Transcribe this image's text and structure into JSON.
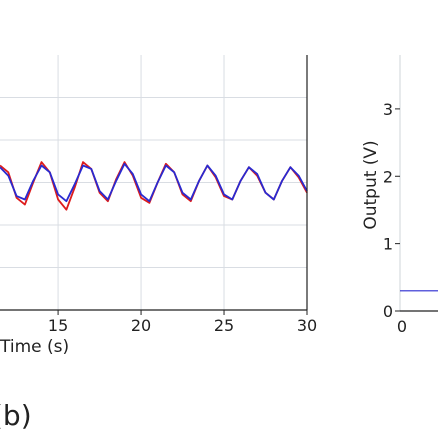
{
  "chart_data": [
    {
      "type": "line",
      "xlabel": "Time (s)",
      "ylabel": "",
      "xlim": [
        11.5,
        30
      ],
      "ylim": [
        -1.5,
        1.5
      ],
      "x_ticks": [
        15,
        20,
        25,
        30
      ],
      "x_tick_labels": [
        "15",
        "20",
        "25",
        "30"
      ],
      "grid": true,
      "panel_label": "(b)",
      "series": [
        {
          "color": "#dd1c1c",
          "x": [
            11.5,
            12.0,
            12.5,
            13.0,
            13.5,
            14.0,
            14.5,
            15.0,
            15.5,
            16.0,
            16.5,
            17.0,
            17.5,
            18.0,
            18.5,
            19.0,
            19.5,
            20.0,
            20.5,
            21.0,
            21.5,
            22.0,
            22.5,
            23.0,
            23.5,
            24.0,
            24.5,
            25.0,
            25.5,
            26.0,
            26.5,
            27.0,
            27.5,
            28.0,
            28.5,
            29.0,
            29.5,
            30.0
          ],
          "y": [
            0.2,
            0.12,
            -0.18,
            -0.26,
            0.0,
            0.24,
            0.12,
            -0.2,
            -0.32,
            -0.06,
            0.24,
            0.16,
            -0.12,
            -0.22,
            0.04,
            0.24,
            0.08,
            -0.18,
            -0.24,
            0.0,
            0.22,
            0.12,
            -0.14,
            -0.22,
            0.02,
            0.2,
            0.06,
            -0.16,
            -0.2,
            0.02,
            0.18,
            0.08,
            -0.12,
            -0.2,
            0.02,
            0.18,
            0.06,
            -0.12
          ]
        },
        {
          "color": "#2a2ad0",
          "x": [
            11.5,
            12.0,
            12.5,
            13.0,
            13.5,
            14.0,
            14.5,
            15.0,
            15.5,
            16.0,
            16.5,
            17.0,
            17.5,
            18.0,
            18.5,
            19.0,
            19.5,
            20.0,
            20.5,
            21.0,
            21.5,
            22.0,
            22.5,
            23.0,
            23.5,
            24.0,
            24.5,
            25.0,
            25.5,
            26.0,
            26.5,
            27.0,
            27.5,
            28.0,
            28.5,
            29.0,
            29.5,
            30.0
          ],
          "y": [
            0.18,
            0.08,
            -0.16,
            -0.2,
            0.02,
            0.2,
            0.12,
            -0.14,
            -0.22,
            -0.02,
            0.2,
            0.16,
            -0.1,
            -0.2,
            0.02,
            0.22,
            0.1,
            -0.14,
            -0.22,
            0.0,
            0.2,
            0.12,
            -0.12,
            -0.2,
            0.02,
            0.2,
            0.08,
            -0.14,
            -0.2,
            0.02,
            0.18,
            0.1,
            -0.12,
            -0.2,
            0.02,
            0.18,
            0.08,
            -0.1
          ]
        }
      ]
    },
    {
      "type": "line",
      "xlabel": "",
      "ylabel": "Output (V)",
      "ylim": [
        0,
        3.8
      ],
      "y_ticks": [
        0,
        1,
        2,
        3
      ],
      "y_tick_labels": [
        "0",
        "1",
        "2",
        "3"
      ],
      "x_tick_labels": [
        "0"
      ],
      "grid": false,
      "series": [
        {
          "color": "#2a2ad0",
          "x": [
            0.0,
            1.0
          ],
          "y": [
            0.3,
            0.3
          ]
        }
      ]
    }
  ]
}
